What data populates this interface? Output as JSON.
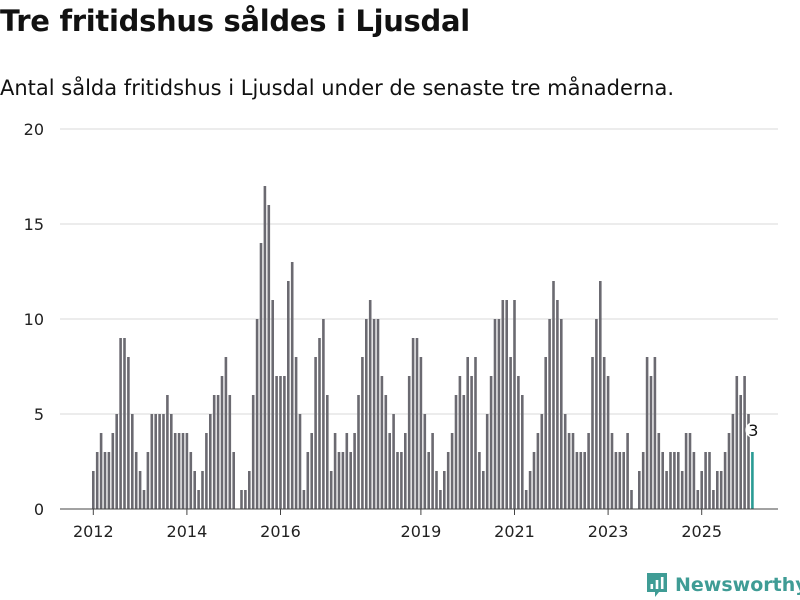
{
  "title": "Tre fritidshus såldes i Ljusdal",
  "subtitle": "Antal sålda fritidshus i Ljusdal under de senaste tre månaderna.",
  "brand": {
    "name": "Newsworthy",
    "icon": "newsworthy-logo-icon",
    "color": "#3f9c95"
  },
  "chart_data": {
    "type": "bar",
    "title": "Tre fritidshus såldes i Ljusdal",
    "xlabel": "",
    "ylabel": "",
    "ylim": [
      0,
      20
    ],
    "yticks": [
      0,
      5,
      10,
      15,
      20
    ],
    "grid": true,
    "xtick_labels": [
      "2012",
      "2014",
      "2016",
      "2019",
      "2021",
      "2023",
      "2025"
    ],
    "xtick_index": [
      0,
      24,
      48,
      84,
      108,
      132,
      156
    ],
    "bar_color": "#6b6a71",
    "highlight_color": "#2a9b94",
    "highlight_label": "3",
    "series": [
      {
        "name": "Antal sålda fritidshus",
        "values": [
          2,
          3,
          4,
          3,
          3,
          4,
          5,
          9,
          9,
          8,
          5,
          3,
          2,
          1,
          3,
          5,
          5,
          5,
          5,
          6,
          5,
          4,
          4,
          4,
          4,
          3,
          2,
          1,
          2,
          4,
          5,
          6,
          6,
          7,
          8,
          6,
          3,
          0,
          1,
          1,
          2,
          6,
          10,
          14,
          17,
          16,
          11,
          7,
          7,
          7,
          12,
          13,
          8,
          5,
          1,
          3,
          4,
          8,
          9,
          10,
          6,
          2,
          4,
          3,
          3,
          4,
          3,
          4,
          6,
          8,
          10,
          11,
          10,
          10,
          7,
          6,
          4,
          5,
          3,
          3,
          4,
          7,
          9,
          9,
          8,
          5,
          3,
          4,
          2,
          1,
          2,
          3,
          4,
          6,
          7,
          6,
          8,
          7,
          8,
          3,
          2,
          5,
          7,
          10,
          10,
          11,
          11,
          8,
          11,
          7,
          6,
          1,
          2,
          3,
          4,
          5,
          8,
          10,
          12,
          11,
          10,
          5,
          4,
          4,
          3,
          3,
          3,
          4,
          8,
          10,
          12,
          8,
          7,
          4,
          3,
          3,
          3,
          4,
          1,
          0,
          2,
          3,
          8,
          7,
          8,
          4,
          3,
          2,
          3,
          3,
          3,
          2,
          4,
          4,
          3,
          1,
          2,
          3,
          3,
          1,
          2,
          2,
          3,
          4,
          5,
          7,
          6,
          7,
          5,
          3
        ]
      }
    ]
  }
}
